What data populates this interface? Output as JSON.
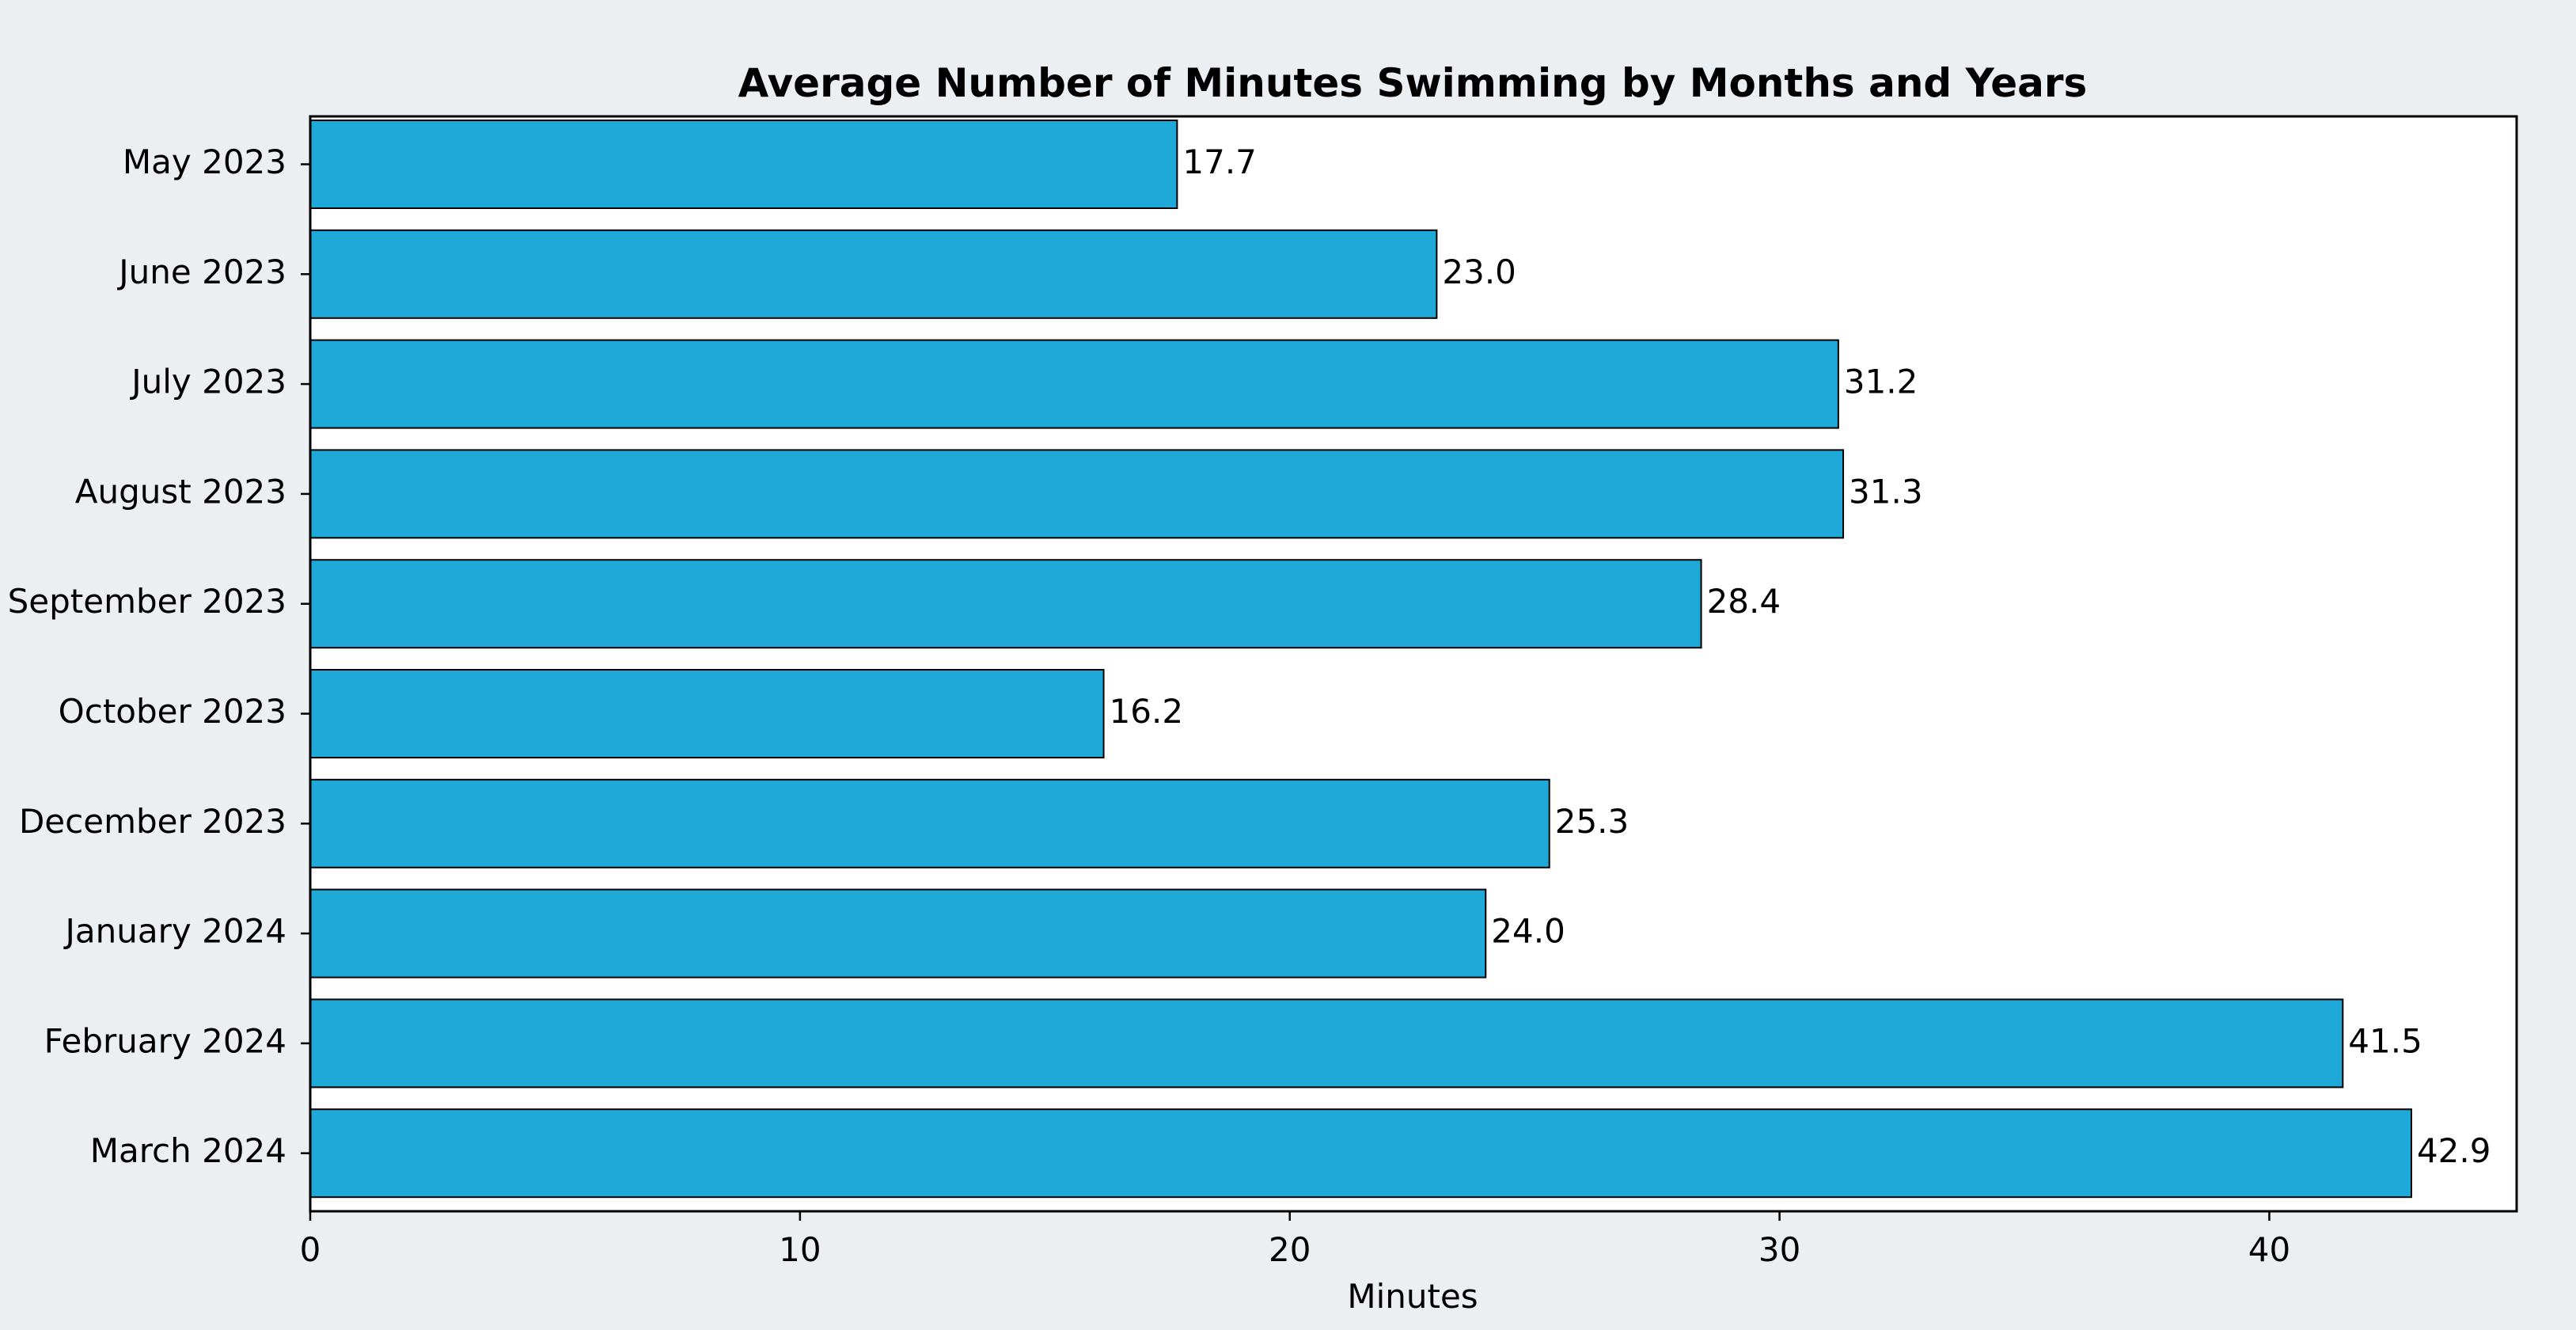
{
  "chart_data": {
    "type": "bar",
    "orientation": "horizontal",
    "title": "Average Number of Minutes Swimming by Months and Years",
    "xlabel": "Minutes",
    "ylabel": "",
    "categories": [
      "May 2023",
      "June 2023",
      "July 2023",
      "August 2023",
      "September 2023",
      "October 2023",
      "December 2023",
      "January 2024",
      "February 2024",
      "March 2024"
    ],
    "values": [
      17.7,
      23.0,
      31.2,
      31.3,
      28.4,
      16.2,
      25.3,
      24.0,
      41.5,
      42.9
    ],
    "value_labels": [
      "17.7",
      "23.0",
      "31.2",
      "31.3",
      "28.4",
      "16.2",
      "25.3",
      "24.0",
      "41.5",
      "42.9"
    ],
    "xlim": [
      0,
      45.05
    ],
    "xticks": [
      0,
      10,
      20,
      30,
      40
    ],
    "xtick_labels": [
      "0",
      "10",
      "20",
      "30",
      "40"
    ],
    "grid": false,
    "legend": "none",
    "bar_color": "#1fa9d9",
    "bar_edge_color": "#000000",
    "plot_background": "#ffffff",
    "figure_background": "#ebeff2"
  }
}
